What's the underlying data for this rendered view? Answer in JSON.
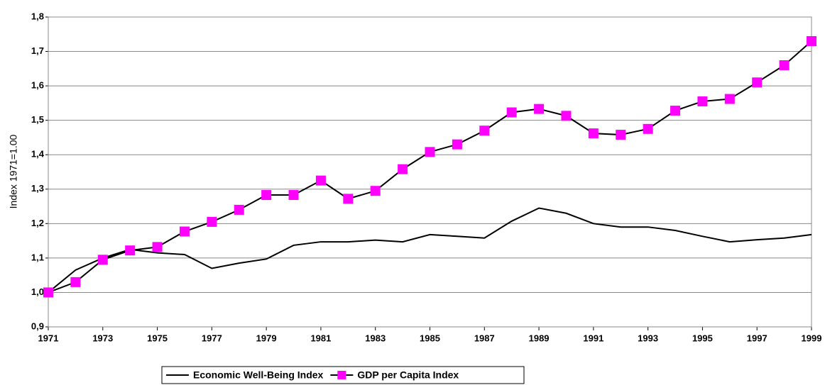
{
  "chart_data": {
    "type": "line",
    "y_label": "Index 1971=1.00",
    "x": [
      1971,
      1972,
      1973,
      1974,
      1975,
      1976,
      1977,
      1978,
      1979,
      1980,
      1981,
      1982,
      1983,
      1984,
      1985,
      1986,
      1987,
      1988,
      1989,
      1990,
      1991,
      1992,
      1993,
      1994,
      1995,
      1996,
      1997,
      1998,
      1999
    ],
    "series": [
      {
        "name": "Economic Well-Being Index",
        "color": "#000000",
        "values": [
          1.0,
          1.065,
          1.1,
          1.125,
          1.115,
          1.11,
          1.07,
          1.085,
          1.097,
          1.137,
          1.147,
          1.147,
          1.152,
          1.147,
          1.168,
          1.163,
          1.158,
          1.207,
          1.245,
          1.23,
          1.2,
          1.19,
          1.19,
          1.18,
          1.163,
          1.147,
          1.153,
          1.158,
          1.168
        ]
      },
      {
        "name": "GDP per Capita Index",
        "color": "#ff00ff",
        "marker": "square",
        "values": [
          1.0,
          1.03,
          1.095,
          1.122,
          1.132,
          1.177,
          1.205,
          1.24,
          1.283,
          1.283,
          1.325,
          1.272,
          1.295,
          1.358,
          1.408,
          1.43,
          1.47,
          1.523,
          1.533,
          1.513,
          1.462,
          1.458,
          1.475,
          1.528,
          1.555,
          1.562,
          1.61,
          1.66,
          1.73
        ]
      }
    ],
    "xlim": [
      1971,
      1999
    ],
    "xticks": [
      1971,
      1973,
      1975,
      1977,
      1979,
      1981,
      1983,
      1985,
      1987,
      1989,
      1991,
      1993,
      1995,
      1997,
      1999
    ],
    "ylim": [
      0.9,
      1.8
    ],
    "yticks": [
      {
        "value": 0.9,
        "label": "0,9"
      },
      {
        "value": 1.0,
        "label": "1,0"
      },
      {
        "value": 1.1,
        "label": "1,1"
      },
      {
        "value": 1.2,
        "label": "1,2"
      },
      {
        "value": 1.3,
        "label": "1,3"
      },
      {
        "value": 1.4,
        "label": "1,4"
      },
      {
        "value": 1.5,
        "label": "1,5"
      },
      {
        "value": 1.6,
        "label": "1,6"
      },
      {
        "value": 1.7,
        "label": "1,7"
      },
      {
        "value": 1.8,
        "label": "1,8"
      }
    ],
    "grid": true,
    "legend": "bottom"
  }
}
